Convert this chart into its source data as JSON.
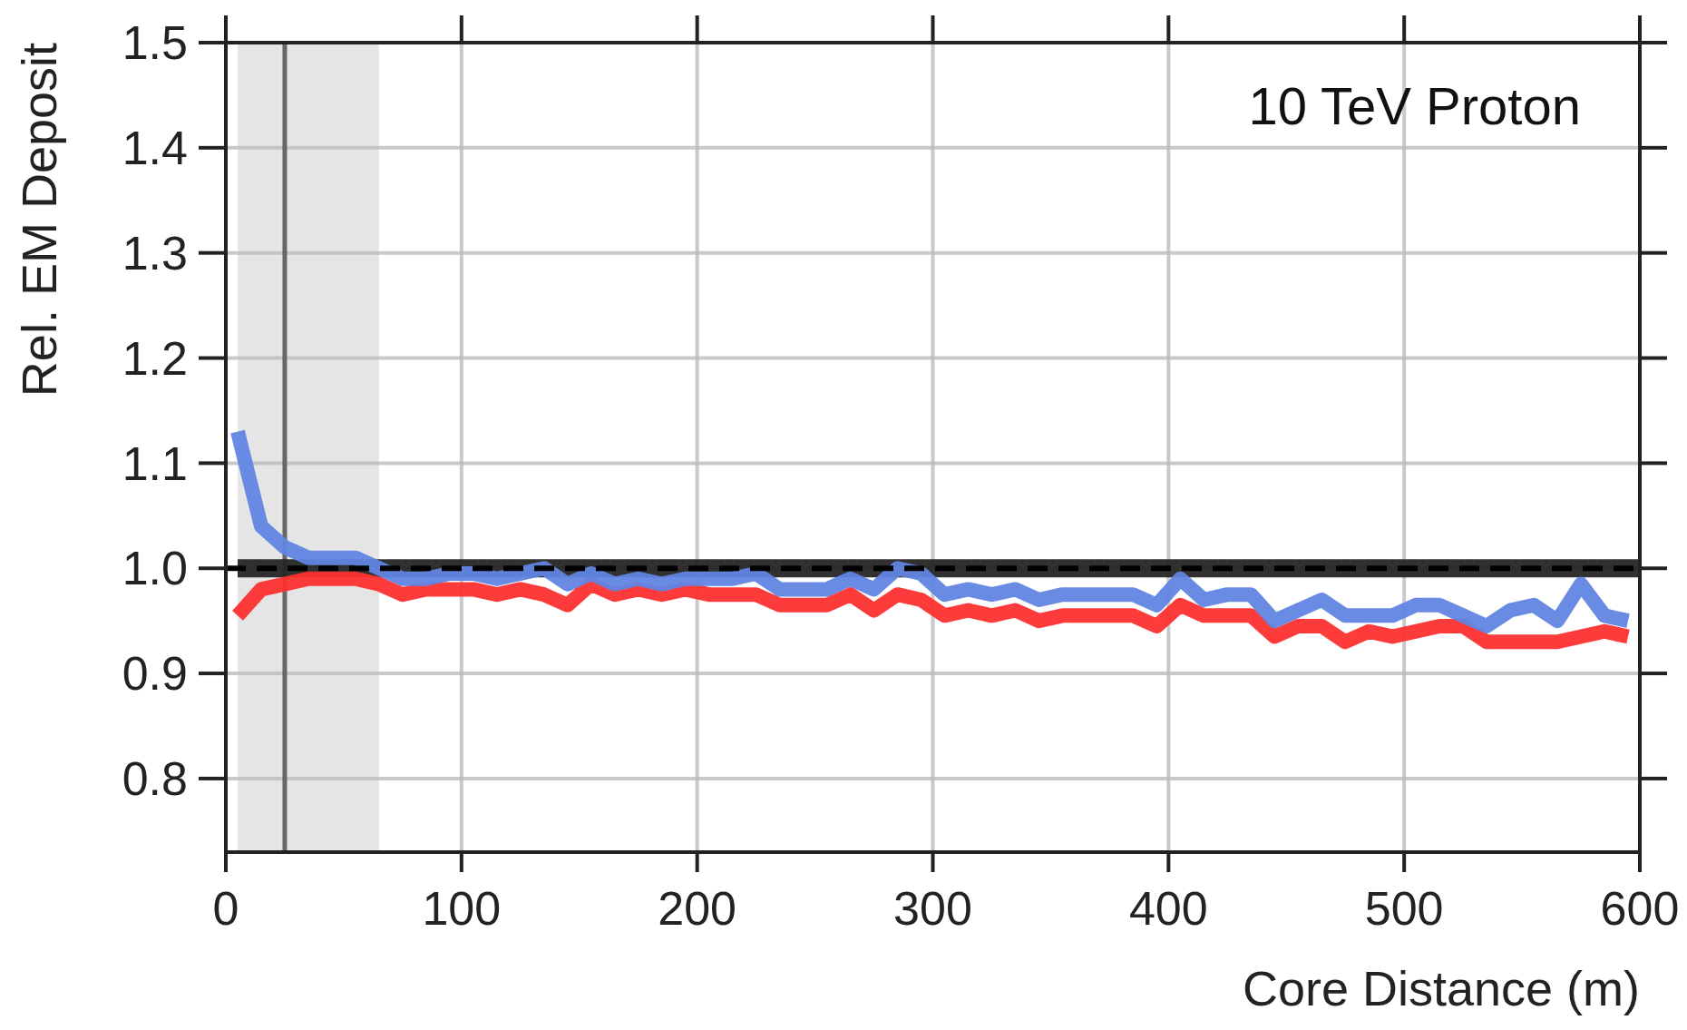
{
  "chart_data": {
    "type": "line",
    "xlabel": "Core Distance (m)",
    "ylabel": "Rel. EM Deposit",
    "annotations": [
      "10 TeV Proton"
    ],
    "xlim": [
      0,
      600
    ],
    "xticks": [
      0,
      100,
      200,
      300,
      400,
      500,
      600
    ],
    "ylim": [
      0.73,
      1.5
    ],
    "yticks": [
      {
        "value": 0.8,
        "label": "0.8"
      },
      {
        "value": 0.9,
        "label": "0.9"
      },
      {
        "value": 1.0,
        "label": "1.0"
      },
      {
        "value": 1.1,
        "label": "1.1"
      },
      {
        "value": 1.2,
        "label": "1.2"
      },
      {
        "value": 1.3,
        "label": "1.3"
      },
      {
        "value": 1.4,
        "label": "1.4"
      },
      {
        "value": 1.5,
        "label": "1.5"
      }
    ],
    "grid": true,
    "ref_lines": [
      {
        "axis": "y",
        "value": 1.0,
        "color": "#000000",
        "line_style": "dashed"
      },
      {
        "axis": "x",
        "value": 25,
        "color": "#666666",
        "line_style": "solid"
      }
    ],
    "bands": [
      {
        "axis": "x",
        "from": 5,
        "to": 65,
        "color": "#e5e5e5"
      }
    ],
    "series": [
      {
        "color": "#262626",
        "x": [
          5,
          15,
          600
        ],
        "values": [
          1.0,
          1.0,
          1.0
        ]
      },
      {
        "color": "#fe3030",
        "x": [
          5,
          15,
          25,
          35,
          45,
          55,
          65,
          75,
          85,
          95,
          105,
          115,
          125,
          135,
          145,
          155,
          165,
          175,
          185,
          195,
          205,
          215,
          225,
          235,
          245,
          255,
          265,
          275,
          285,
          295,
          305,
          315,
          325,
          335,
          345,
          355,
          365,
          375,
          385,
          395,
          405,
          415,
          425,
          435,
          445,
          455,
          465,
          475,
          485,
          495,
          505,
          515,
          525,
          535,
          545,
          555,
          565,
          575,
          585,
          595
        ],
        "values": [
          0.955,
          0.98,
          0.985,
          0.99,
          0.99,
          0.99,
          0.985,
          0.975,
          0.98,
          0.98,
          0.98,
          0.975,
          0.98,
          0.975,
          0.965,
          0.985,
          0.975,
          0.98,
          0.975,
          0.98,
          0.975,
          0.975,
          0.975,
          0.965,
          0.965,
          0.965,
          0.975,
          0.96,
          0.975,
          0.97,
          0.955,
          0.96,
          0.955,
          0.96,
          0.95,
          0.955,
          0.955,
          0.955,
          0.955,
          0.945,
          0.965,
          0.955,
          0.955,
          0.955,
          0.935,
          0.945,
          0.945,
          0.93,
          0.94,
          0.935,
          0.94,
          0.945,
          0.945,
          0.93,
          0.93,
          0.93,
          0.93,
          0.935,
          0.94,
          0.935
        ]
      },
      {
        "color": "#6185e3",
        "x": [
          5,
          15,
          25,
          35,
          45,
          55,
          65,
          75,
          85,
          95,
          105,
          115,
          125,
          135,
          145,
          155,
          165,
          175,
          185,
          195,
          205,
          215,
          225,
          235,
          245,
          255,
          265,
          275,
          285,
          295,
          305,
          315,
          325,
          335,
          345,
          355,
          365,
          375,
          385,
          395,
          405,
          415,
          425,
          435,
          445,
          455,
          465,
          475,
          485,
          495,
          505,
          515,
          525,
          535,
          545,
          555,
          565,
          575,
          585,
          595
        ],
        "values": [
          1.13,
          1.04,
          1.02,
          1.01,
          1.01,
          1.01,
          1.0,
          0.99,
          0.99,
          0.995,
          0.995,
          0.99,
          0.995,
          1.0,
          0.985,
          0.995,
          0.985,
          0.99,
          0.985,
          0.99,
          0.99,
          0.99,
          0.995,
          0.98,
          0.98,
          0.98,
          0.99,
          0.98,
          1.0,
          0.995,
          0.975,
          0.98,
          0.975,
          0.98,
          0.97,
          0.975,
          0.975,
          0.975,
          0.975,
          0.965,
          0.99,
          0.97,
          0.975,
          0.975,
          0.95,
          0.96,
          0.97,
          0.955,
          0.955,
          0.955,
          0.965,
          0.965,
          0.955,
          0.945,
          0.96,
          0.965,
          0.95,
          0.985,
          0.955,
          0.95
        ]
      }
    ]
  }
}
